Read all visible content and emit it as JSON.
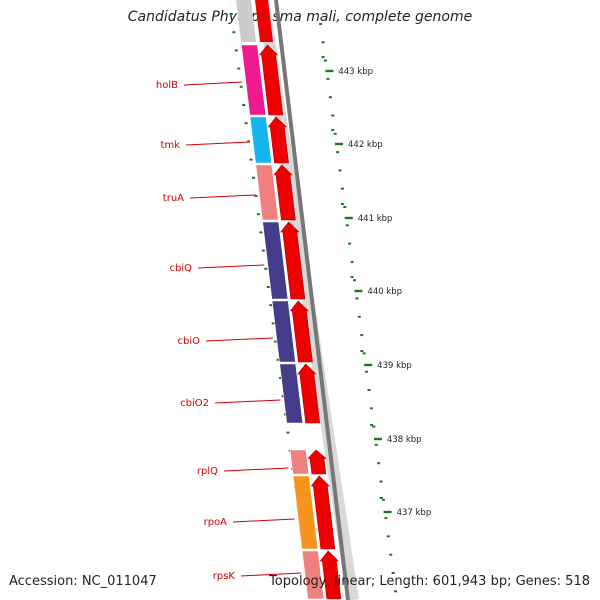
{
  "title": "Candidatus Phytoplasma mali, complete genome",
  "footer": {
    "accession": "Accession: NC_011047",
    "summary": "Topology: linear; Length: 601,943 bp; Genes: 518"
  },
  "genes": [
    {
      "name": "holB",
      "color": "#ee1b8e"
    },
    {
      "name": "tmk",
      "color": "#14b4ec"
    },
    {
      "name": "truA",
      "color": "#f08080"
    },
    {
      "name": "cbiQ",
      "color": "#463c8c"
    },
    {
      "name": "cbiO",
      "color": "#463c8c"
    },
    {
      "name": "cbiO2",
      "color": "#463c8c"
    },
    {
      "name": "rplQ",
      "color": "#f08080"
    },
    {
      "name": "rpoA",
      "color": "#f7941d"
    },
    {
      "name": "rpsK",
      "color": "#f08080"
    }
  ],
  "scale_labels": [
    "443 kbp",
    "442 kbp",
    "441 kbp",
    "440 kbp",
    "439 kbp",
    "438 kbp",
    "437 kbp"
  ],
  "colors": {
    "label_red": "#cc0000",
    "arrow_red": "#ee0000",
    "backbone": "#888888",
    "tick_green": "#1a7a1a"
  }
}
